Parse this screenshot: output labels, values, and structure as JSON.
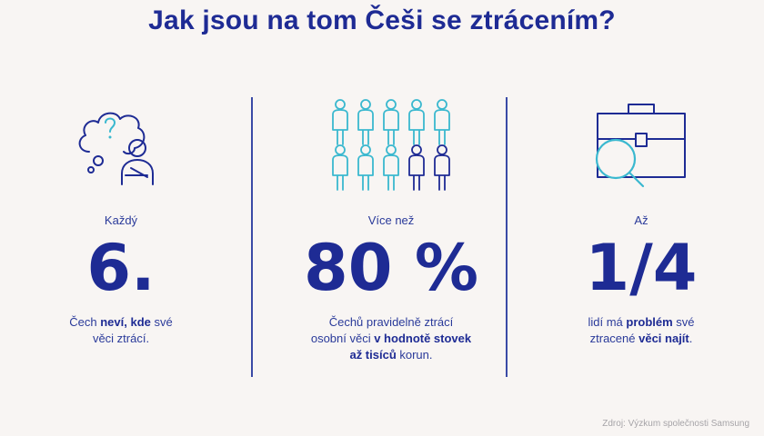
{
  "title": "Jak jsou na tom Češi se ztrácením?",
  "colors": {
    "navy": "#1e2b94",
    "teal": "#3ab8cf",
    "background": "#f8f5f3"
  },
  "stats": [
    {
      "icon": "thinking-person-icon",
      "pre": "Každý",
      "value": "6.",
      "desc": {
        "l1a": "Čech ",
        "l1b": "neví, kde",
        "l1c": " své",
        "l2a": "věci ztrácí."
      }
    },
    {
      "icon": "people-grid-icon",
      "pre": "Více než",
      "value": "80 %",
      "desc": {
        "l1a": "Čechů pravidelně ztrácí",
        "l2a": "osobní věci ",
        "l2b": "v hodnotě stovek",
        "l3b": "až tisíců",
        "l3c": " korun."
      }
    },
    {
      "icon": "briefcase-magnifier-icon",
      "pre": "Až",
      "value": "1/4",
      "desc": {
        "l1a": "lidí má ",
        "l1b": "problém",
        "l1c": " své",
        "l2a": "ztracené ",
        "l2b": "věci najít",
        "l2c": "."
      }
    }
  ],
  "source": "Zdroj: Výzkum společnosti Samsung"
}
